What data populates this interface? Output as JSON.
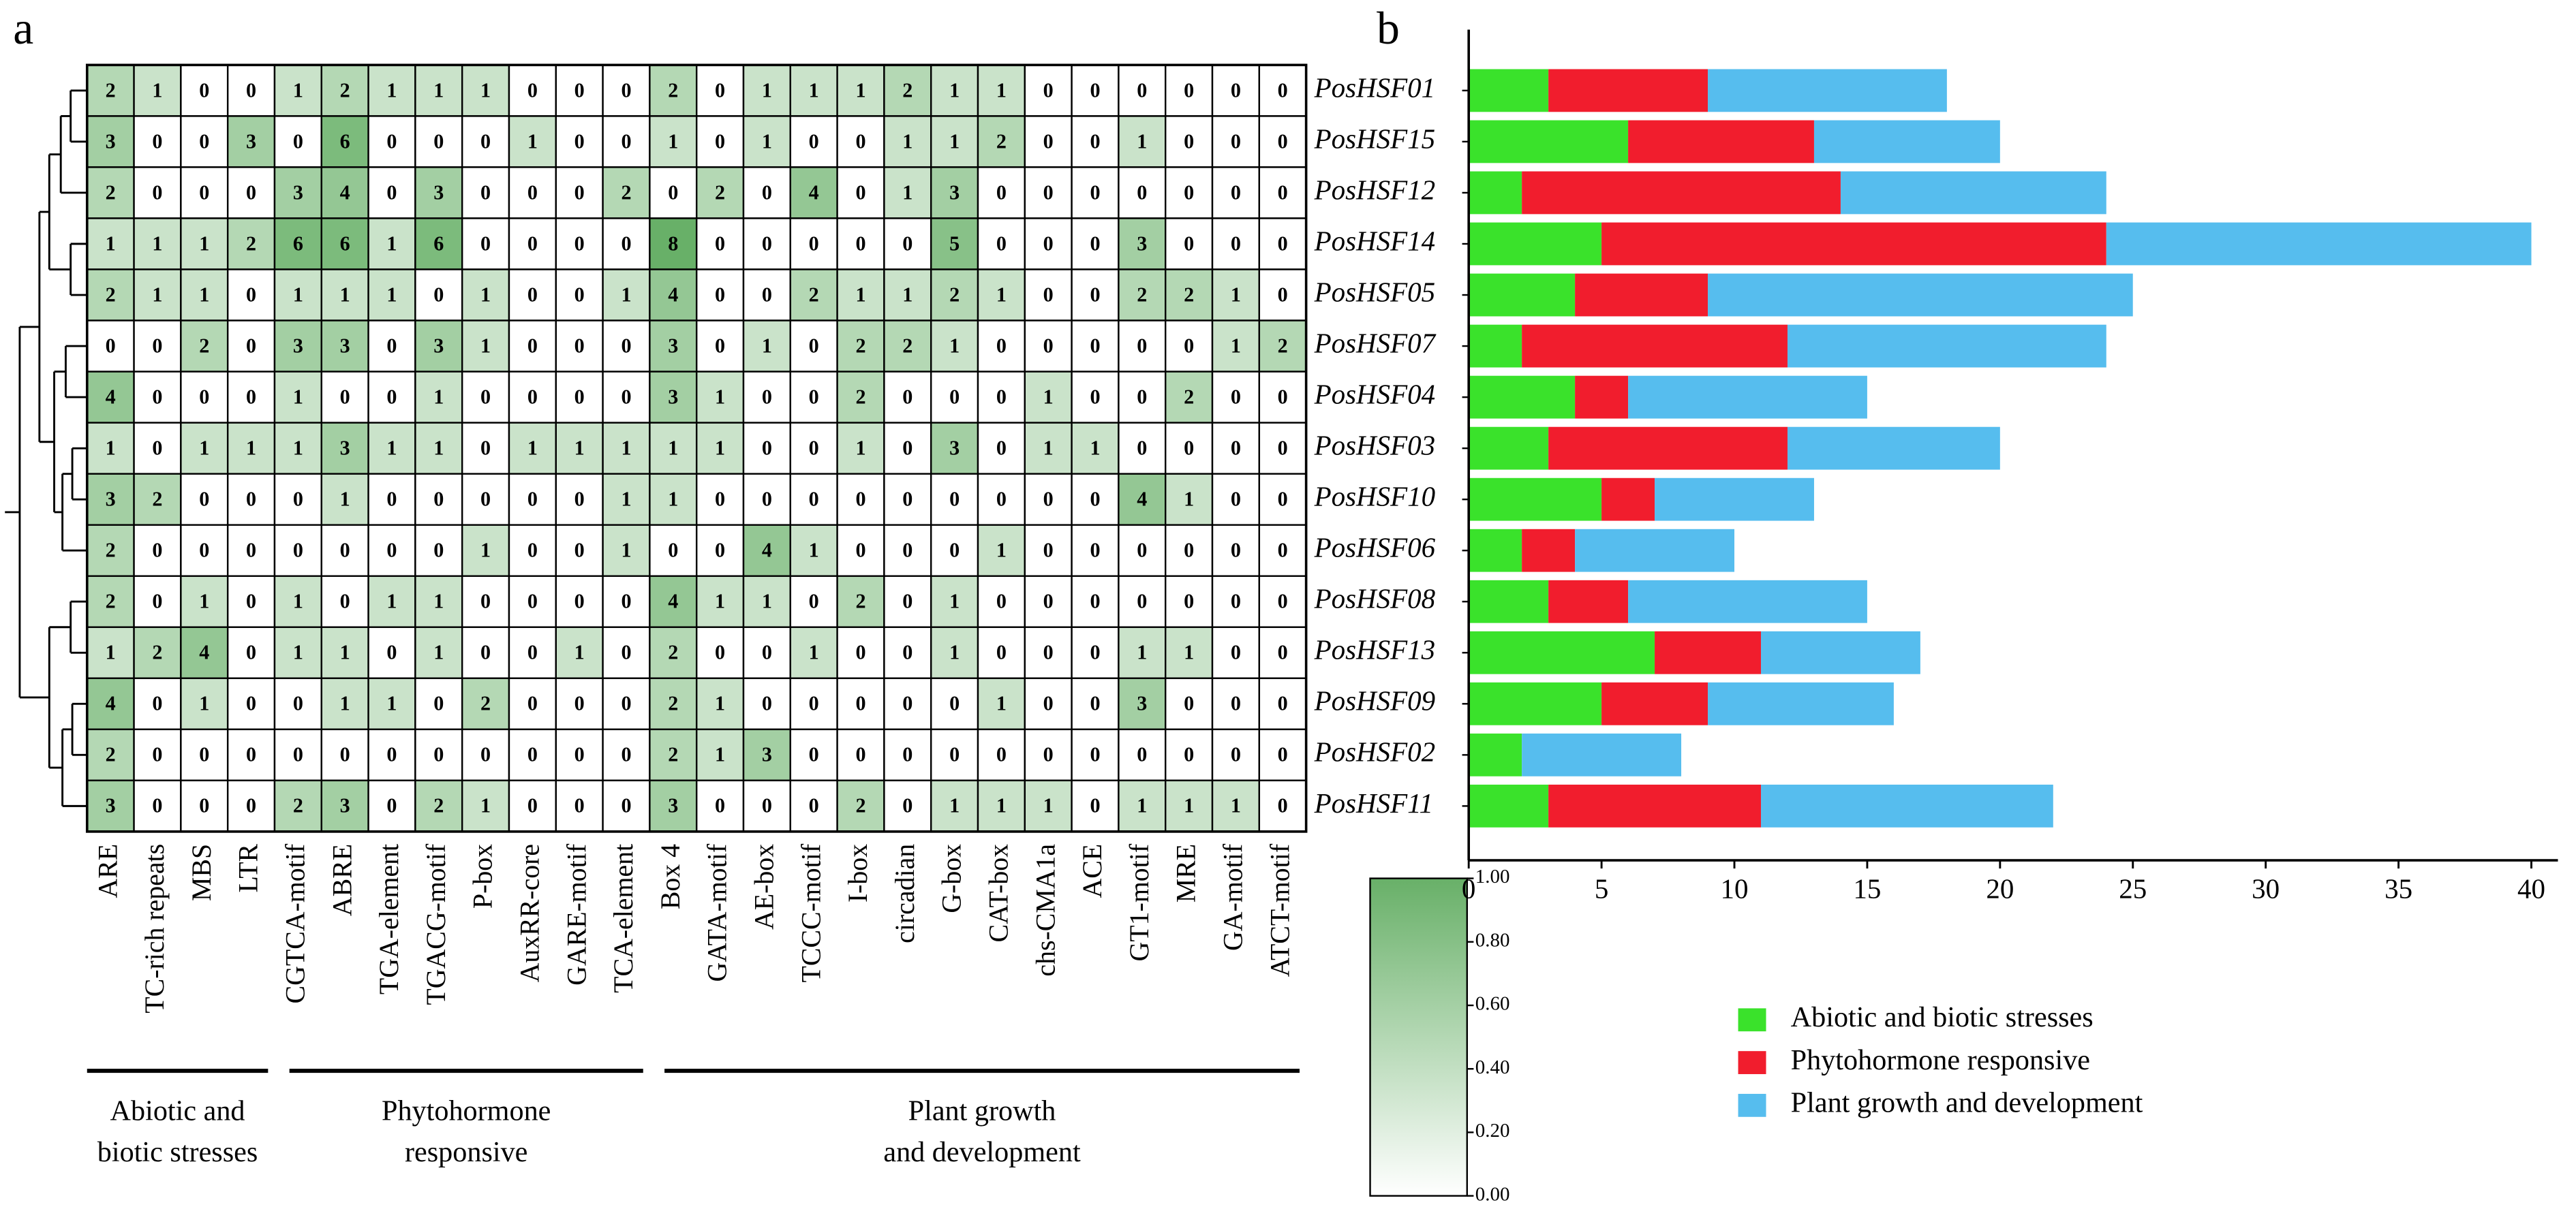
{
  "chart_data": [
    {
      "type": "heatmap",
      "label": "a",
      "columns": [
        "ARE",
        "TC-rich repeats",
        "MBS",
        "LTR",
        "CGTCA-motif",
        "ABRE",
        "TGA-element",
        "TGACG-motif",
        "P-box",
        "AuxRR-core",
        "GARE-motif",
        "TCA-element",
        "Box 4",
        "GATA-motif",
        "AE-box",
        "TCCC-motif",
        "I-box",
        "circadian",
        "G-box",
        "CAT-box",
        "chs-CMA1a",
        "ACE",
        "GT1-motif",
        "MRE",
        "GA-motif",
        "ATCT-motif"
      ],
      "values": [
        [
          2,
          1,
          0,
          0,
          1,
          2,
          1,
          1,
          1,
          0,
          0,
          0,
          2,
          0,
          1,
          1,
          1,
          2,
          1,
          1,
          0,
          0,
          0,
          0,
          0,
          0
        ],
        [
          3,
          0,
          0,
          3,
          0,
          6,
          0,
          0,
          0,
          1,
          0,
          0,
          1,
          0,
          1,
          0,
          0,
          1,
          1,
          2,
          0,
          0,
          1,
          0,
          0,
          0
        ],
        [
          2,
          0,
          0,
          0,
          3,
          4,
          0,
          3,
          0,
          0,
          0,
          2,
          0,
          2,
          0,
          4,
          0,
          1,
          3,
          0,
          0,
          0,
          0,
          0,
          0,
          0
        ],
        [
          1,
          1,
          1,
          2,
          6,
          6,
          1,
          6,
          0,
          0,
          0,
          0,
          8,
          0,
          0,
          0,
          0,
          0,
          5,
          0,
          0,
          0,
          3,
          0,
          0,
          0
        ],
        [
          2,
          1,
          1,
          0,
          1,
          1,
          1,
          0,
          1,
          0,
          0,
          1,
          4,
          0,
          0,
          2,
          1,
          1,
          2,
          1,
          0,
          0,
          2,
          2,
          1,
          0
        ],
        [
          0,
          0,
          2,
          0,
          3,
          3,
          0,
          3,
          1,
          0,
          0,
          0,
          3,
          0,
          1,
          0,
          2,
          2,
          1,
          0,
          0,
          0,
          0,
          0,
          1,
          2
        ],
        [
          4,
          0,
          0,
          0,
          1,
          0,
          0,
          1,
          0,
          0,
          0,
          0,
          3,
          1,
          0,
          0,
          2,
          0,
          0,
          0,
          1,
          0,
          0,
          2,
          0,
          0
        ],
        [
          1,
          0,
          1,
          1,
          1,
          3,
          1,
          1,
          0,
          1,
          1,
          1,
          1,
          1,
          0,
          0,
          1,
          0,
          3,
          0,
          1,
          1,
          0,
          0,
          0,
          0
        ],
        [
          3,
          2,
          0,
          0,
          0,
          1,
          0,
          0,
          0,
          0,
          0,
          1,
          1,
          0,
          0,
          0,
          0,
          0,
          0,
          0,
          0,
          0,
          4,
          1,
          0,
          0
        ],
        [
          2,
          0,
          0,
          0,
          0,
          0,
          0,
          0,
          1,
          0,
          0,
          1,
          0,
          0,
          4,
          1,
          0,
          0,
          0,
          1,
          0,
          0,
          0,
          0,
          0,
          0
        ],
        [
          2,
          0,
          1,
          0,
          1,
          0,
          1,
          1,
          0,
          0,
          0,
          0,
          4,
          1,
          1,
          0,
          2,
          0,
          1,
          0,
          0,
          0,
          0,
          0,
          0,
          0
        ],
        [
          1,
          2,
          4,
          0,
          1,
          1,
          0,
          1,
          0,
          0,
          1,
          0,
          2,
          0,
          0,
          1,
          0,
          0,
          1,
          0,
          0,
          0,
          1,
          1,
          0,
          0
        ],
        [
          4,
          0,
          1,
          0,
          0,
          1,
          1,
          0,
          2,
          0,
          0,
          0,
          2,
          1,
          0,
          0,
          0,
          0,
          0,
          1,
          0,
          0,
          3,
          0,
          0,
          0
        ],
        [
          2,
          0,
          0,
          0,
          0,
          0,
          0,
          0,
          0,
          0,
          0,
          0,
          2,
          1,
          3,
          0,
          0,
          0,
          0,
          0,
          0,
          0,
          0,
          0,
          0,
          0
        ],
        [
          3,
          0,
          0,
          0,
          2,
          3,
          0,
          2,
          1,
          0,
          0,
          0,
          3,
          0,
          0,
          0,
          2,
          0,
          1,
          1,
          1,
          0,
          1,
          1,
          1,
          0
        ]
      ],
      "groups": [
        {
          "lines": [
            "Abiotic and",
            "biotic stresses"
          ]
        },
        {
          "lines": [
            "Phytohormone",
            "responsive"
          ]
        },
        {
          "lines": [
            "Plant growth",
            "and development"
          ]
        }
      ],
      "color_min": "#ffffff",
      "color_max": "#68b068",
      "colorbar": {
        "lim": [
          0,
          1
        ],
        "ticks": [
          {
            "value": 0,
            "label": "0.00"
          },
          {
            "value": 0.2,
            "label": "0.20"
          },
          {
            "value": 0.4,
            "label": "0.40"
          },
          {
            "value": 0.6,
            "label": "0.60"
          },
          {
            "value": 0.8,
            "label": "0.80"
          },
          {
            "value": 1,
            "label": "1.00"
          }
        ]
      }
    },
    {
      "type": "bar",
      "label": "b",
      "orientation": "horizontal",
      "stacked": true,
      "categories": [
        "PosHSF01",
        "PosHSF15",
        "PosHSF12",
        "PosHSF14",
        "PosHSF05",
        "PosHSF07",
        "PosHSF04",
        "PosHSF03",
        "PosHSF10",
        "PosHSF06",
        "PosHSF08",
        "PosHSF13",
        "PosHSF09",
        "PosHSF02",
        "PosHSF11"
      ],
      "series": [
        {
          "name": "Abiotic and biotic stresses",
          "color": "#3ae22b",
          "values": [
            3,
            6,
            2,
            5,
            4,
            2,
            4,
            3,
            5,
            2,
            3,
            7,
            5,
            2,
            3
          ]
        },
        {
          "name": "Phytohormone responsive",
          "color": "#f11d2d",
          "values": [
            6,
            7,
            12,
            19,
            5,
            10,
            2,
            9,
            2,
            2,
            3,
            4,
            4,
            0,
            8
          ]
        },
        {
          "name": "Plant growth and development",
          "color": "#56bdee",
          "values": [
            9,
            7,
            10,
            16,
            16,
            12,
            9,
            8,
            6,
            6,
            9,
            6,
            7,
            6,
            11
          ]
        }
      ],
      "xlim": [
        0,
        41
      ],
      "xticks": [
        0,
        5,
        10,
        15,
        20,
        25,
        30,
        35,
        40
      ]
    }
  ]
}
